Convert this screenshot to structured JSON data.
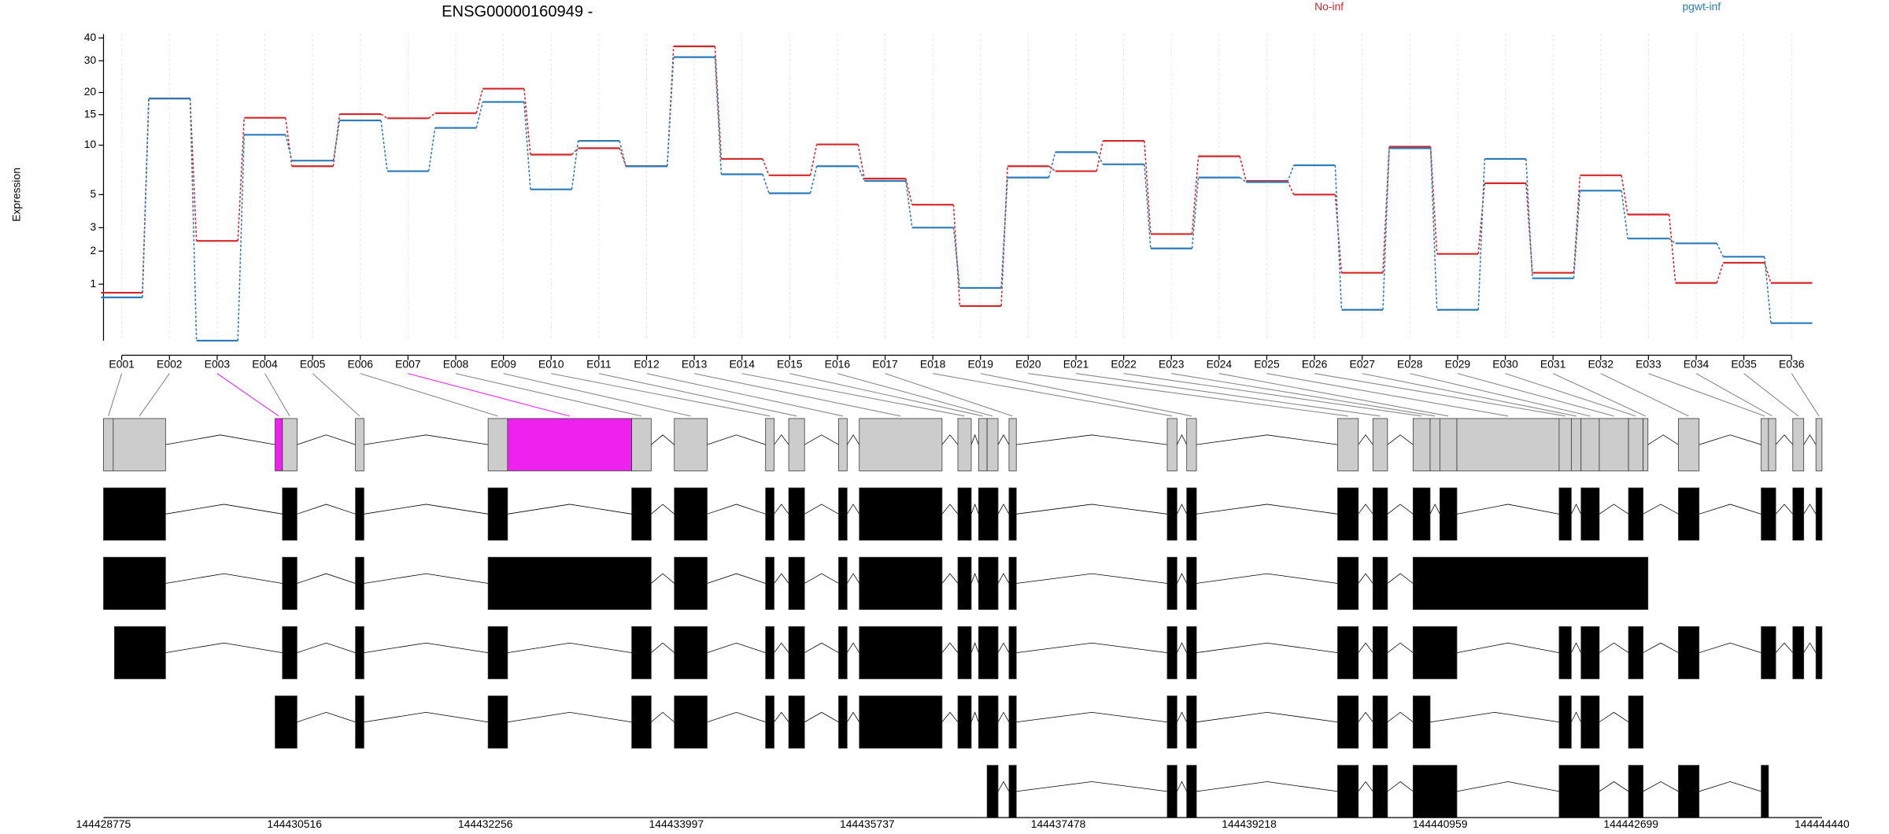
{
  "chart_data": {
    "type": "line",
    "title": "ENSG00000160949 -",
    "y_label": "Expression",
    "yscale": "log1p",
    "grid": true,
    "categories": [
      "E001",
      "E002",
      "E003",
      "E004",
      "E005",
      "E006",
      "E007",
      "E008",
      "E009",
      "E010",
      "E011",
      "E012",
      "E013",
      "E014",
      "E015",
      "E016",
      "E017",
      "E018",
      "E019",
      "E020",
      "E021",
      "E022",
      "E023",
      "E024",
      "E025",
      "E026",
      "E027",
      "E028",
      "E029",
      "E030",
      "E031",
      "E032",
      "E033",
      "E034",
      "E035",
      "E036"
    ],
    "series": [
      {
        "name": "No-inf",
        "color": "#d62728",
        "values": [
          0.8,
          18.5,
          2.4,
          14.4,
          7.5,
          15.1,
          14.3,
          15.3,
          21,
          8.8,
          9.6,
          7.5,
          36,
          8.3,
          6.6,
          10.1,
          6.3,
          4.3,
          0.53,
          7.5,
          7.0,
          10.6,
          2.7,
          8.6,
          6.1,
          5.0,
          1.3,
          9.8,
          1.9,
          5.9,
          1.3,
          6.6,
          3.7,
          1.03,
          1.6,
          1.03
        ]
      },
      {
        "name": "pgwt-inf",
        "color": "#2b7bba",
        "values": [
          0.7,
          18.5,
          0,
          11.5,
          8.1,
          13.9,
          7.0,
          12.6,
          17.7,
          5.4,
          10.6,
          7.5,
          31.4,
          6.7,
          5.1,
          7.5,
          6.1,
          3.0,
          0.91,
          6.4,
          9.1,
          7.7,
          2.1,
          6.4,
          6.0,
          7.6,
          0.46,
          9.6,
          0.46,
          8.3,
          1.15,
          5.3,
          2.5,
          2.3,
          1.8,
          0.24
        ]
      }
    ],
    "ylim": [
      0,
      42
    ],
    "yticks": [
      1,
      2,
      3,
      5,
      10,
      15,
      20,
      30,
      40
    ],
    "highlighted": [
      2,
      6
    ],
    "highlight_color": "#ee22ee",
    "genomic_lim": [
      144428775,
      144444440
    ],
    "genomic_ticks": [
      144428775,
      144430516,
      144432256,
      144433997,
      144435737,
      144437478,
      144439218,
      144440959,
      144442699,
      144444440
    ]
  }
}
